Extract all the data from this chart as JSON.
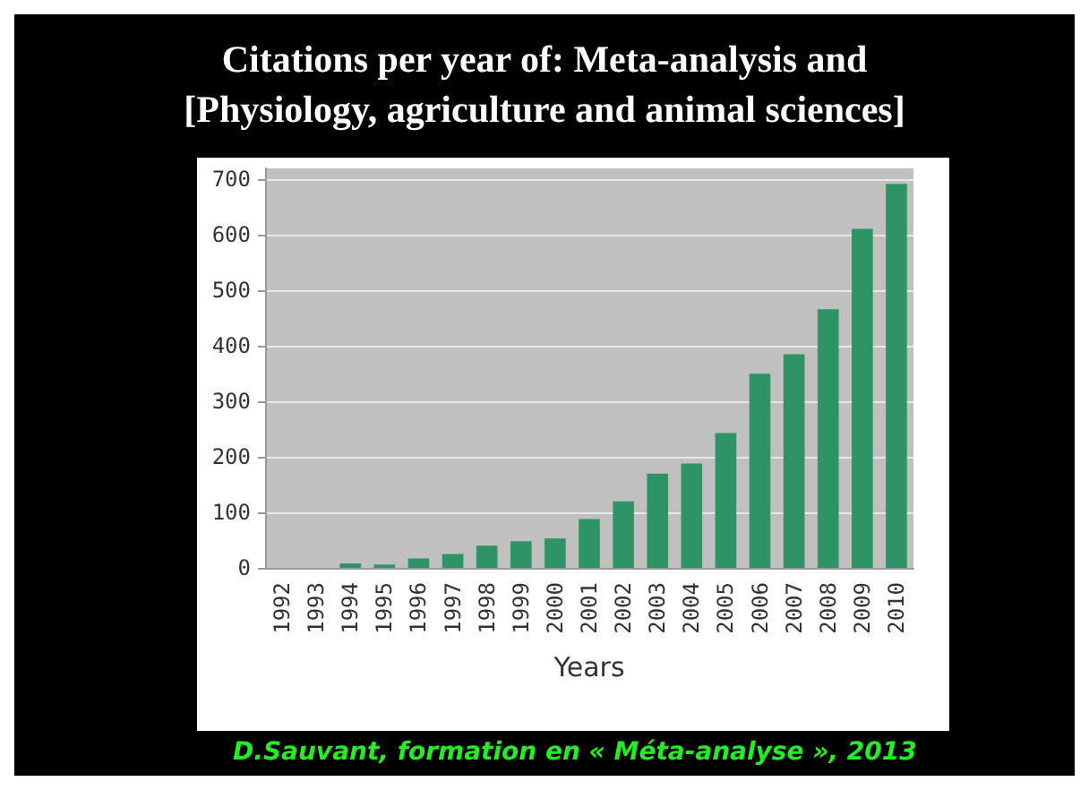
{
  "chart_data": {
    "type": "bar",
    "title": "Citations per year of: Meta-analysis and\n[Physiology, agriculture and animal sciences]",
    "xlabel": "Years",
    "categories": [
      "1992",
      "1993",
      "1994",
      "1995",
      "1996",
      "1997",
      "1998",
      "1999",
      "2000",
      "2001",
      "2002",
      "2003",
      "2004",
      "2005",
      "2006",
      "2007",
      "2008",
      "2009",
      "2010"
    ],
    "values": [
      0,
      0,
      8,
      6,
      17,
      25,
      40,
      48,
      53,
      88,
      120,
      170,
      188,
      243,
      350,
      385,
      466,
      611,
      692
    ],
    "color": "#2e9466",
    "ylim": [
      0,
      720
    ],
    "yticks": [
      0,
      100,
      200,
      300,
      400,
      500,
      600,
      700
    ],
    "grid": "y",
    "annotations": [
      "D.Sauvant, formation en « Méta-analyse », 2013"
    ]
  }
}
